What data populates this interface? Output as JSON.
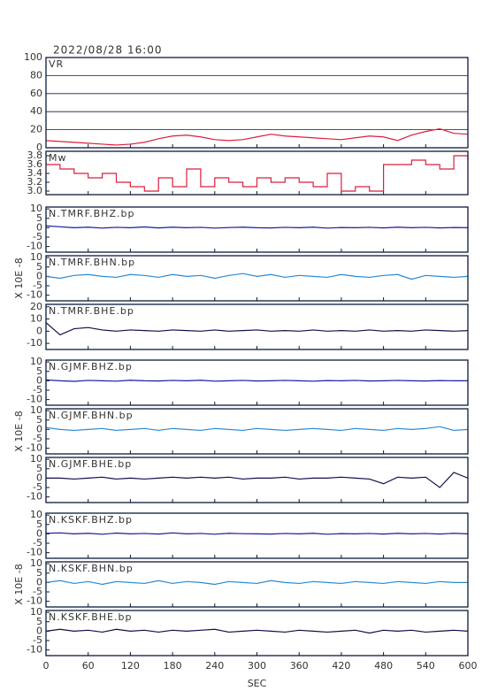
{
  "chart_data": [
    {
      "type": "line",
      "title": "2022/08/28 16:00",
      "label": "VR",
      "color": "#dc1e3c",
      "grid": true,
      "ylim": [
        0,
        100
      ],
      "yticks": [
        0,
        20,
        40,
        60,
        80,
        100
      ],
      "xlim": [
        0,
        600
      ],
      "x": [
        0,
        20,
        40,
        60,
        80,
        100,
        120,
        140,
        160,
        180,
        200,
        220,
        240,
        260,
        280,
        300,
        320,
        340,
        360,
        380,
        400,
        420,
        440,
        460,
        480,
        500,
        520,
        540,
        560,
        580,
        600
      ],
      "values": [
        8,
        7,
        6,
        5,
        4,
        3,
        4,
        6,
        10,
        13,
        14,
        12,
        9,
        8,
        9,
        12,
        15,
        13,
        12,
        11,
        10,
        9,
        11,
        13,
        12,
        8,
        14,
        18,
        21,
        16,
        15
      ]
    },
    {
      "type": "line",
      "label": "Mw",
      "color": "#dc1e3c",
      "step": true,
      "ylim": [
        2.92,
        3.9
      ],
      "yticks": [
        {
          "value": 3,
          "label": "3.0"
        },
        3.2,
        3.4,
        3.6,
        3.8
      ],
      "xlim": [
        0,
        600
      ],
      "x": [
        0,
        20,
        40,
        60,
        80,
        100,
        120,
        140,
        160,
        180,
        200,
        220,
        240,
        260,
        280,
        300,
        320,
        340,
        360,
        380,
        400,
        420,
        440,
        460,
        480,
        500,
        520,
        540,
        560,
        580,
        600
      ],
      "values": [
        3.6,
        3.5,
        3.4,
        3.3,
        3.4,
        3.2,
        3.1,
        3.0,
        3.3,
        3.1,
        3.5,
        3.1,
        3.3,
        3.2,
        3.1,
        3.3,
        3.2,
        3.3,
        3.2,
        3.1,
        3.4,
        3.0,
        3.1,
        3.0,
        3.6,
        3.6,
        3.7,
        3.6,
        3.5,
        3.8,
        3.7
      ]
    },
    {
      "type": "line",
      "label": "N.TMRF.BHZ.bp",
      "color": "#1a1aa0",
      "ylim": [
        -13,
        11
      ],
      "yticks": [
        -10,
        -5,
        0,
        5,
        10
      ],
      "xlim": [
        0,
        600
      ],
      "x": [
        0,
        20,
        40,
        60,
        80,
        100,
        120,
        140,
        160,
        180,
        200,
        220,
        240,
        260,
        280,
        300,
        320,
        340,
        360,
        380,
        400,
        420,
        440,
        460,
        480,
        500,
        520,
        540,
        560,
        580,
        600
      ],
      "values": [
        1,
        0.5,
        0,
        0.3,
        -0.2,
        0.2,
        0,
        0.4,
        -0.1,
        0.3,
        0,
        0.2,
        -0.2,
        0.1,
        0.3,
        0,
        -0.1,
        0.2,
        0,
        0.3,
        -0.2,
        0.1,
        0,
        0.2,
        -0.1,
        0.3,
        0,
        0.2,
        -0.1,
        0.1,
        0
      ]
    },
    {
      "type": "line",
      "label": "N.TMRF.BHN.bp",
      "ylabel": "X 10E -8",
      "color": "#2a8ad4",
      "ylim": [
        -13,
        11
      ],
      "yticks": [
        -10,
        -5,
        0,
        5,
        10
      ],
      "xlim": [
        0,
        600
      ],
      "x": [
        0,
        20,
        40,
        60,
        80,
        100,
        120,
        140,
        160,
        180,
        200,
        220,
        240,
        260,
        280,
        300,
        320,
        340,
        360,
        380,
        400,
        420,
        440,
        460,
        480,
        500,
        520,
        540,
        560,
        580,
        600
      ],
      "values": [
        0,
        -1,
        0.5,
        1,
        0,
        -0.5,
        1,
        0.5,
        -0.5,
        1,
        0,
        0.5,
        -1,
        0.5,
        1.5,
        0,
        1,
        -0.5,
        0.5,
        0,
        -0.5,
        1,
        0,
        -0.5,
        0.5,
        1,
        -1.5,
        0.5,
        0,
        -0.5,
        0
      ]
    },
    {
      "type": "line",
      "label": "N.TMRF.BHE.bp",
      "color": "#10104a",
      "ylim": [
        -15,
        22
      ],
      "yticks": [
        -10,
        0,
        10,
        20
      ],
      "xlim": [
        0,
        600
      ],
      "x": [
        0,
        20,
        40,
        60,
        80,
        100,
        120,
        140,
        160,
        180,
        200,
        220,
        240,
        260,
        280,
        300,
        320,
        340,
        360,
        380,
        400,
        420,
        440,
        460,
        480,
        500,
        520,
        540,
        560,
        580,
        600
      ],
      "values": [
        7,
        -3,
        2,
        3,
        1,
        0,
        1,
        0.5,
        0,
        1,
        0.5,
        0,
        1,
        0,
        0.5,
        1,
        0,
        0.5,
        0,
        1,
        0,
        0.5,
        0,
        1,
        0,
        0.5,
        0,
        1,
        0.5,
        0,
        0.5
      ]
    },
    {
      "type": "line",
      "label": "N.GJMF.BHZ.bp",
      "color": "#1a1aa0",
      "ylim": [
        -13,
        11
      ],
      "yticks": [
        -10,
        -5,
        0,
        5,
        10
      ],
      "xlim": [
        0,
        600
      ],
      "x": [
        0,
        20,
        40,
        60,
        80,
        100,
        120,
        140,
        160,
        180,
        200,
        220,
        240,
        260,
        280,
        300,
        320,
        340,
        360,
        380,
        400,
        420,
        440,
        460,
        480,
        500,
        520,
        540,
        560,
        580,
        600
      ],
      "values": [
        0.5,
        0,
        -0.3,
        0.2,
        0,
        -0.2,
        0.3,
        0,
        -0.1,
        0.2,
        0,
        0.3,
        -0.2,
        0,
        0.2,
        -0.1,
        0,
        0.2,
        0,
        -0.2,
        0.1,
        0,
        0.2,
        -0.1,
        0,
        0.2,
        0,
        -0.1,
        0.1,
        0,
        0
      ]
    },
    {
      "type": "line",
      "label": "N.GJMF.BHN.bp",
      "ylabel": "X 10E -8",
      "color": "#2a8ad4",
      "ylim": [
        -13,
        11
      ],
      "yticks": [
        -10,
        -5,
        0,
        5,
        10
      ],
      "xlim": [
        0,
        600
      ],
      "x": [
        0,
        20,
        40,
        60,
        80,
        100,
        120,
        140,
        160,
        180,
        200,
        220,
        240,
        260,
        280,
        300,
        320,
        340,
        360,
        380,
        400,
        420,
        440,
        460,
        480,
        500,
        520,
        540,
        560,
        580,
        600
      ],
      "values": [
        1,
        0,
        -0.5,
        0,
        0.5,
        -0.5,
        0,
        0.5,
        -0.5,
        0.5,
        0,
        -0.5,
        0.5,
        0,
        -0.5,
        0.5,
        0,
        -0.5,
        0,
        0.5,
        0,
        -0.5,
        0.5,
        0,
        -0.5,
        0.5,
        0,
        0.5,
        1.5,
        -0.5,
        0
      ]
    },
    {
      "type": "line",
      "label": "N.GJMF.BHE.bp",
      "color": "#10104a",
      "ylim": [
        -13,
        11
      ],
      "yticks": [
        -10,
        -5,
        0,
        5,
        10
      ],
      "xlim": [
        0,
        600
      ],
      "x": [
        0,
        20,
        40,
        60,
        80,
        100,
        120,
        140,
        160,
        180,
        200,
        220,
        240,
        260,
        280,
        300,
        320,
        340,
        360,
        380,
        400,
        420,
        440,
        460,
        480,
        500,
        520,
        540,
        560,
        580,
        600
      ],
      "values": [
        0,
        0,
        -0.5,
        0,
        0.5,
        -0.5,
        0,
        -0.5,
        0,
        0.5,
        0,
        0.5,
        0,
        0.5,
        -0.5,
        0,
        0,
        0.5,
        -0.5,
        0,
        0,
        0.5,
        0,
        -0.5,
        -3,
        0.5,
        0,
        0.5,
        -5,
        3,
        0
      ]
    },
    {
      "type": "line",
      "label": "N.KSKF.BHZ.bp",
      "color": "#1a1aa0",
      "ylim": [
        -13,
        11
      ],
      "yticks": [
        -10,
        -5,
        0,
        5,
        10
      ],
      "xlim": [
        0,
        600
      ],
      "x": [
        0,
        20,
        40,
        60,
        80,
        100,
        120,
        140,
        160,
        180,
        200,
        220,
        240,
        260,
        280,
        300,
        320,
        340,
        360,
        380,
        400,
        420,
        440,
        460,
        480,
        500,
        520,
        540,
        560,
        580,
        600
      ],
      "values": [
        0.3,
        0.5,
        0,
        0.3,
        -0.2,
        0.4,
        0,
        0.2,
        -0.1,
        0.5,
        0,
        0.2,
        -0.2,
        0.3,
        0.1,
        0,
        -0.1,
        0.2,
        0,
        0.3,
        -0.2,
        0.1,
        0,
        0.2,
        -0.1,
        0.3,
        0,
        0.2,
        -0.1,
        0.3,
        0
      ]
    },
    {
      "type": "line",
      "label": "N.KSKF.BHN.bp",
      "ylabel": "X 10E -8",
      "color": "#2a8ad4",
      "ylim": [
        -13,
        11
      ],
      "yticks": [
        -10,
        -5,
        0,
        5,
        10
      ],
      "xlim": [
        0,
        600
      ],
      "x": [
        0,
        20,
        40,
        60,
        80,
        100,
        120,
        140,
        160,
        180,
        200,
        220,
        240,
        260,
        280,
        300,
        320,
        340,
        360,
        380,
        400,
        420,
        440,
        460,
        480,
        500,
        520,
        540,
        560,
        580,
        600
      ],
      "values": [
        0,
        1,
        -0.5,
        0.5,
        -1,
        0.5,
        0,
        -0.5,
        1,
        -0.5,
        0.5,
        0,
        -1,
        0.5,
        0,
        -0.5,
        1,
        0,
        -0.5,
        0.5,
        0,
        -0.5,
        0.5,
        0,
        -0.5,
        0.5,
        0,
        -0.5,
        0.5,
        0,
        0
      ]
    },
    {
      "type": "line",
      "label": "N.KSKF.BHE.bp",
      "color": "#10104a",
      "ylim": [
        -13,
        11
      ],
      "yticks": [
        -10,
        -5,
        0,
        5,
        10
      ],
      "xlim": [
        0,
        600
      ],
      "xlabel": "SEC",
      "xticks": [
        0,
        60,
        120,
        180,
        240,
        300,
        360,
        420,
        480,
        540,
        600
      ],
      "x": [
        0,
        20,
        40,
        60,
        80,
        100,
        120,
        140,
        160,
        180,
        200,
        220,
        240,
        260,
        280,
        300,
        320,
        340,
        360,
        380,
        400,
        420,
        440,
        460,
        480,
        500,
        520,
        540,
        560,
        580,
        600
      ],
      "values": [
        0,
        1,
        0,
        0.5,
        -0.5,
        1,
        0,
        0.5,
        -0.5,
        0.5,
        0,
        0.5,
        1,
        -0.5,
        0,
        0.5,
        0,
        -0.5,
        0.5,
        0,
        -0.5,
        0,
        0.5,
        -1,
        0.5,
        0,
        0.5,
        -0.5,
        0,
        0.5,
        0
      ]
    }
  ]
}
